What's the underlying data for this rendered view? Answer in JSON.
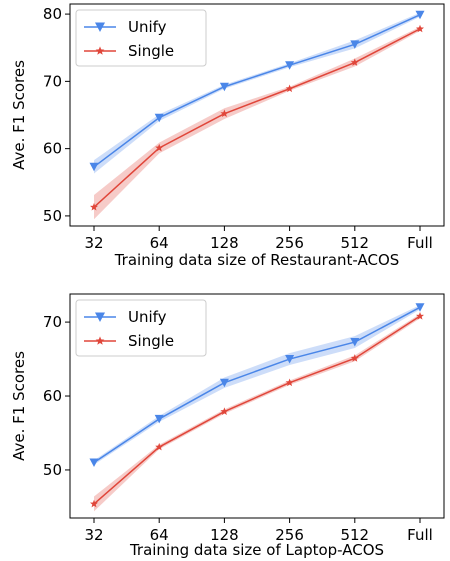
{
  "chart_data": [
    {
      "type": "line",
      "title": "",
      "xlabel": "Training data size of Restaurant-ACOS",
      "ylabel": "Ave. F1 Scores",
      "categories": [
        "32",
        "64",
        "128",
        "256",
        "512",
        "Full"
      ],
      "ylim": [
        48.5,
        81.5
      ],
      "yticks": [
        50,
        60,
        70,
        80
      ],
      "grid": false,
      "legend": "top-left",
      "series": [
        {
          "name": "Unify",
          "color": "#4a86e8",
          "marker": "triangle-down",
          "values": [
            57.3,
            64.6,
            69.2,
            72.4,
            75.5,
            79.9
          ],
          "lower": [
            56.3,
            64.1,
            68.9,
            72.1,
            74.9,
            79.6
          ],
          "upper": [
            58.3,
            65.1,
            69.5,
            72.7,
            76.1,
            80.2
          ]
        },
        {
          "name": "Single",
          "color": "#e0463a",
          "marker": "star",
          "values": [
            51.3,
            60.1,
            65.2,
            68.9,
            72.8,
            77.8
          ],
          "lower": [
            49.5,
            59.3,
            64.4,
            68.6,
            72.2,
            77.5
          ],
          "upper": [
            53.1,
            60.9,
            66.0,
            69.2,
            73.4,
            78.1
          ]
        }
      ]
    },
    {
      "type": "line",
      "title": "",
      "xlabel": "Training data size of Laptop-ACOS",
      "ylabel": "Ave. F1 Scores",
      "categories": [
        "32",
        "64",
        "128",
        "256",
        "512",
        "Full"
      ],
      "ylim": [
        43.5,
        73.8
      ],
      "yticks": [
        50,
        60,
        70
      ],
      "grid": false,
      "legend": "top-left",
      "series": [
        {
          "name": "Unify",
          "color": "#4a86e8",
          "marker": "triangle-down",
          "values": [
            51.0,
            56.9,
            61.8,
            65.0,
            67.3,
            72.0
          ],
          "lower": [
            50.7,
            56.5,
            61.1,
            64.2,
            66.5,
            71.7
          ],
          "upper": [
            51.3,
            57.3,
            62.5,
            65.8,
            68.1,
            72.3
          ]
        },
        {
          "name": "Single",
          "color": "#e0463a",
          "marker": "star",
          "values": [
            45.4,
            53.1,
            57.9,
            61.8,
            65.1,
            70.8
          ],
          "lower": [
            44.4,
            52.8,
            57.6,
            61.5,
            64.7,
            70.5
          ],
          "upper": [
            46.4,
            53.4,
            58.2,
            62.1,
            65.5,
            71.1
          ]
        }
      ]
    }
  ]
}
